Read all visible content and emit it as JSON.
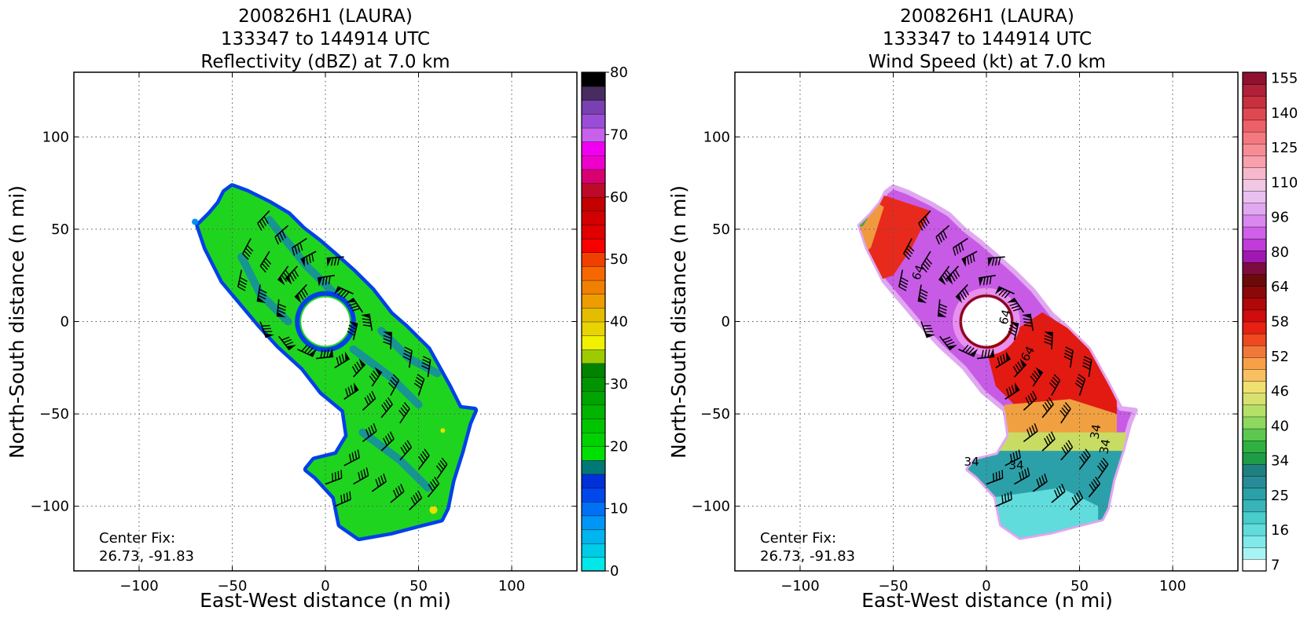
{
  "chart_data": [
    {
      "type": "heatmap",
      "title": [
        "200826H1 (LAURA)",
        "133347 to 144914 UTC",
        "Reflectivity (dBZ) at 7.0 km"
      ],
      "xlabel": "East-West distance (n mi)",
      "ylabel": "North-South distance (n mi)",
      "xlim": [
        -135,
        135
      ],
      "ylim": [
        -135,
        135
      ],
      "xticks": [
        -100,
        -50,
        0,
        50,
        100
      ],
      "yticks": [
        -100,
        -50,
        0,
        50,
        100
      ],
      "grid": true,
      "annotation": [
        "Center Fix:",
        "26.73, -91.83"
      ],
      "colorbar": {
        "min": 0,
        "max": 80,
        "ticks": [
          0,
          10,
          20,
          30,
          40,
          50,
          60,
          70,
          80
        ],
        "colors": [
          "#00e8e8",
          "#00cce6",
          "#00b4ee",
          "#0096f5",
          "#0070f5",
          "#0048ec",
          "#0030d8",
          "#007878",
          "#00e000",
          "#00d200",
          "#00c400",
          "#00b400",
          "#00a400",
          "#009400",
          "#008400",
          "#9ccc00",
          "#f0f000",
          "#e8d400",
          "#e4bc00",
          "#ee9c00",
          "#f08000",
          "#f86800",
          "#f04000",
          "#f80000",
          "#e00000",
          "#d20000",
          "#c40000",
          "#bc0a28",
          "#d80070",
          "#ee00cc",
          "#f000f0",
          "#c860ec",
          "#9a4ed8",
          "#7840b0",
          "#482c60",
          "#000000"
        ]
      },
      "vortex_center": [
        0,
        0
      ],
      "eye_radius": 13,
      "field_description": "Reflectivity mostly 18-28 dBZ (green) with blue 10-15 dBZ edges; isolated yellow 38-42 dBZ near eyewall and southeast tip."
    },
    {
      "type": "heatmap",
      "title": [
        "200826H1 (LAURA)",
        "133347 to 144914 UTC",
        "Wind Speed (kt) at 7.0 km"
      ],
      "xlabel": "East-West distance (n mi)",
      "ylabel": "North-South distance (n mi)",
      "xlim": [
        -135,
        135
      ],
      "ylim": [
        -135,
        135
      ],
      "xticks": [
        -100,
        -50,
        0,
        50,
        100
      ],
      "yticks": [
        -100,
        -50,
        0,
        50,
        100
      ],
      "grid": true,
      "annotation": [
        "Center Fix:",
        "26.73, -91.83"
      ],
      "contour_labels": [
        "64",
        "64",
        "64",
        "34",
        "34",
        "34",
        "34"
      ],
      "colorbar": {
        "ticks": [
          "7",
          "16",
          "25",
          "34",
          "40",
          "46",
          "52",
          "58",
          "64",
          "80",
          "96",
          "110",
          "125",
          "140",
          "155"
        ],
        "colors": [
          "#ffffff",
          "#a8f4f4",
          "#80eaea",
          "#60dcdc",
          "#48cccc",
          "#38b4b8",
          "#2ca0a8",
          "#288c98",
          "#208080",
          "#1e9c46",
          "#30b040",
          "#5cc850",
          "#8cd860",
          "#b4e068",
          "#d8e070",
          "#f0e070",
          "#f8c060",
          "#f8a048",
          "#f07838",
          "#f04820",
          "#e82014",
          "#d00c0c",
          "#b00808",
          "#8c0808",
          "#6c0a0a",
          "#7c0c40",
          "#a018b0",
          "#c03cd8",
          "#d060e8",
          "#d888ee",
          "#e0a8f0",
          "#eac0f0",
          "#f0c8e4",
          "#f8b8cc",
          "#f8a0ac",
          "#f88c94",
          "#f47880",
          "#ee6068",
          "#e04850",
          "#c83040",
          "#b02038",
          "#901030"
        ]
      },
      "vortex_center": [
        0,
        0
      ],
      "eye_radius": 13,
      "field_description": "Purple 80-110 kt ring around eye, red 52-64 kt band to the NW and SE, yellow-green 34-46 kt and teal 20-30 kt to the south."
    }
  ]
}
